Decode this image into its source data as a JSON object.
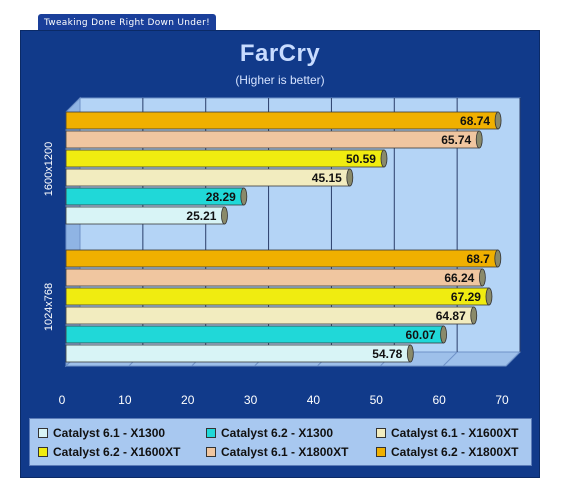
{
  "header": {
    "tagline": "Tweaking Done Right Down Under!"
  },
  "chart_data": {
    "type": "bar",
    "orientation": "horizontal",
    "title": "FarCry",
    "subtitle": "(Higher is better)",
    "xlim": [
      0,
      70
    ],
    "x_ticks": [
      "0",
      "10",
      "20",
      "30",
      "40",
      "50",
      "60",
      "70"
    ],
    "grid": true,
    "legend_position": "bottom",
    "categories": [
      "1600x1200",
      "1024x768"
    ],
    "series": [
      {
        "name": "Catalyst 6.1 - X1300",
        "color": "#d8f4f6",
        "values": [
          25.21,
          54.78
        ]
      },
      {
        "name": "Catalyst 6.2 - X1300",
        "color": "#20d8d8",
        "values": [
          28.29,
          60.07
        ]
      },
      {
        "name": "Catalyst 6.1 - X1600XT",
        "color": "#f2ecbf",
        "values": [
          45.15,
          64.87
        ]
      },
      {
        "name": "Catalyst 6.2 - X1600XT",
        "color": "#f0ec10",
        "values": [
          50.59,
          67.29
        ]
      },
      {
        "name": "Catalyst 6.1 - X1800XT",
        "color": "#f0c6a0",
        "values": [
          65.74,
          66.24
        ]
      },
      {
        "name": "Catalyst 6.2 - X1800XT",
        "color": "#f0b000",
        "values": [
          68.74,
          68.7
        ]
      }
    ],
    "value_labels": [
      [
        "25.21",
        "54.78"
      ],
      [
        "28.29",
        "60.07"
      ],
      [
        "45.15",
        "64.87"
      ],
      [
        "50.59",
        "67.29"
      ],
      [
        "65.74",
        "66.24"
      ],
      [
        "68.74",
        "68.7"
      ]
    ]
  }
}
